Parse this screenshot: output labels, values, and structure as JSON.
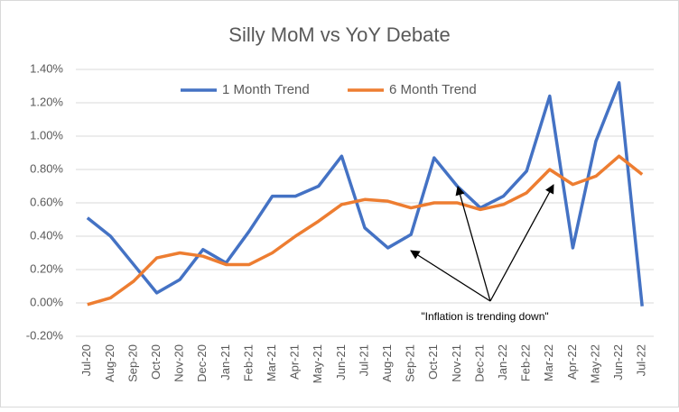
{
  "chart_data": {
    "type": "line",
    "title": "Silly MoM vs YoY Debate",
    "categories": [
      "Jul-20",
      "Aug-20",
      "Sep-20",
      "Oct-20",
      "Nov-20",
      "Dec-20",
      "Jan-21",
      "Feb-21",
      "Mar-21",
      "Apr-21",
      "May-21",
      "Jun-21",
      "Jul-21",
      "Aug-21",
      "Sep-21",
      "Oct-21",
      "Nov-21",
      "Dec-21",
      "Jan-22",
      "Feb-22",
      "Mar-22",
      "Apr-22",
      "May-22",
      "Jun-22",
      "Jul-22"
    ],
    "series": [
      {
        "name": "1 Month Trend",
        "color": "#4472c4",
        "values": [
          0.51,
          0.4,
          0.23,
          0.06,
          0.14,
          0.32,
          0.24,
          0.43,
          0.64,
          0.64,
          0.7,
          0.88,
          0.45,
          0.33,
          0.41,
          0.87,
          0.7,
          0.57,
          0.64,
          0.79,
          1.24,
          0.33,
          0.97,
          1.32,
          -0.02
        ]
      },
      {
        "name": "6 Month Trend",
        "color": "#ed7d31",
        "values": [
          -0.01,
          0.03,
          0.13,
          0.27,
          0.3,
          0.28,
          0.23,
          0.23,
          0.3,
          0.4,
          0.49,
          0.59,
          0.62,
          0.61,
          0.57,
          0.6,
          0.6,
          0.56,
          0.59,
          0.66,
          0.8,
          0.71,
          0.76,
          0.88,
          0.77
        ]
      }
    ],
    "ylim": [
      -0.2,
      1.4
    ],
    "yticks": [
      {
        "value": -0.2,
        "label": "-0.20%"
      },
      {
        "value": 0,
        "label": "0.00%"
      },
      {
        "value": 0.2,
        "label": "0.20%"
      },
      {
        "value": 0.4,
        "label": "0.40%"
      },
      {
        "value": 0.6,
        "label": "0.60%"
      },
      {
        "value": 0.8,
        "label": "0.80%"
      },
      {
        "value": 1.0,
        "label": "1.00%"
      },
      {
        "value": 1.2,
        "label": "1.20%"
      },
      {
        "value": 1.4,
        "label": "1.40%"
      }
    ],
    "grid": true,
    "legend": "top",
    "annotation": "\"Inflation is trending down\""
  }
}
